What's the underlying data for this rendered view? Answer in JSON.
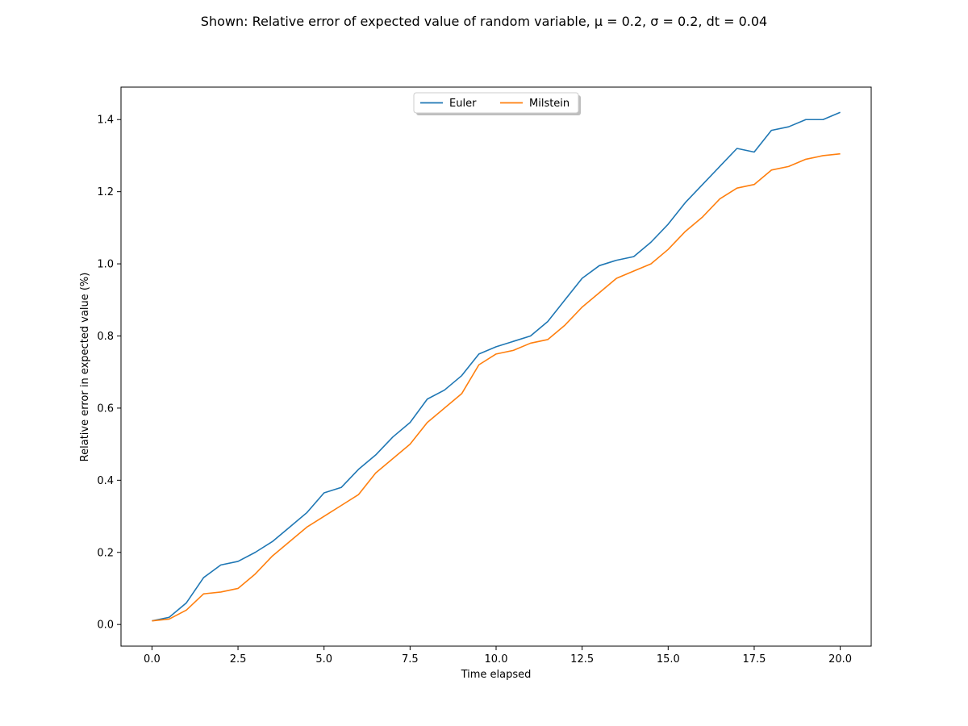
{
  "chart_data": {
    "type": "line",
    "title": "Shown: Relative error of expected value of random variable, μ = 0.2, σ = 0.2, dt = 0.04",
    "xlabel": "Time elapsed",
    "ylabel": "Relative error in expected value (%)",
    "xlim": [
      -0.9,
      20.9
    ],
    "ylim": [
      -0.06,
      1.49
    ],
    "xticks": [
      0.0,
      2.5,
      5.0,
      7.5,
      10.0,
      12.5,
      15.0,
      17.5,
      20.0
    ],
    "xtick_labels": [
      "0.0",
      "2.5",
      "5.0",
      "7.5",
      "10.0",
      "12.5",
      "15.0",
      "17.5",
      "20.0"
    ],
    "yticks": [
      0.0,
      0.2,
      0.4,
      0.6,
      0.8,
      1.0,
      1.2,
      1.4
    ],
    "ytick_labels": [
      "0.0",
      "0.2",
      "0.4",
      "0.6",
      "0.8",
      "1.0",
      "1.2",
      "1.4"
    ],
    "grid": false,
    "legend_position": "top-center",
    "x": [
      0.0,
      0.5,
      1.0,
      1.5,
      2.0,
      2.5,
      3.0,
      3.5,
      4.0,
      4.5,
      5.0,
      5.5,
      6.0,
      6.5,
      7.0,
      7.5,
      8.0,
      8.5,
      9.0,
      9.5,
      10.0,
      10.5,
      11.0,
      11.5,
      12.0,
      12.5,
      13.0,
      13.5,
      14.0,
      14.5,
      15.0,
      15.5,
      16.0,
      16.5,
      17.0,
      17.5,
      18.0,
      18.5,
      19.0,
      19.5,
      20.0
    ],
    "series": [
      {
        "name": "Euler",
        "color": "#1f77b4",
        "values": [
          0.01,
          0.02,
          0.06,
          0.13,
          0.165,
          0.175,
          0.2,
          0.23,
          0.27,
          0.31,
          0.365,
          0.38,
          0.43,
          0.47,
          0.52,
          0.56,
          0.625,
          0.65,
          0.69,
          0.75,
          0.77,
          0.785,
          0.8,
          0.84,
          0.9,
          0.96,
          0.995,
          1.01,
          1.02,
          1.06,
          1.11,
          1.17,
          1.22,
          1.27,
          1.32,
          1.31,
          1.37,
          1.38,
          1.4,
          1.4,
          1.42
        ]
      },
      {
        "name": "Milstein",
        "color": "#ff7f0e",
        "values": [
          0.01,
          0.015,
          0.04,
          0.085,
          0.09,
          0.1,
          0.14,
          0.19,
          0.23,
          0.27,
          0.3,
          0.33,
          0.36,
          0.42,
          0.46,
          0.5,
          0.56,
          0.6,
          0.64,
          0.72,
          0.75,
          0.76,
          0.78,
          0.79,
          0.83,
          0.88,
          0.92,
          0.96,
          0.98,
          1.0,
          1.04,
          1.09,
          1.13,
          1.18,
          1.21,
          1.22,
          1.26,
          1.27,
          1.29,
          1.3,
          1.305
        ]
      }
    ]
  }
}
